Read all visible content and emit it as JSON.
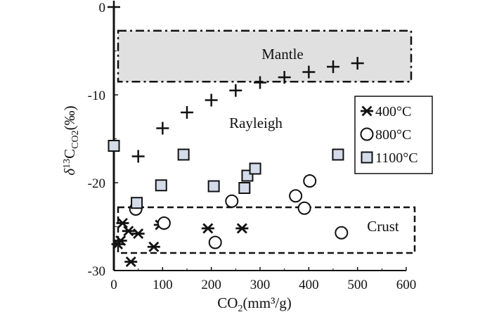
{
  "chart_data": {
    "type": "scatter",
    "xlabel": "CO",
    "xlabel_sub": "2",
    "xlabel_tail": "(mm³/g)",
    "ylabel": "δ",
    "ylabel_sup": "13",
    "ylabel_mid": "C",
    "ylabel_sub": "CO2",
    "ylabel_tail": "(‰)",
    "xlim": [
      0,
      600
    ],
    "ylim": [
      -30,
      0
    ],
    "xticks": [
      "0",
      "100",
      "200",
      "300",
      "400",
      "500",
      "600"
    ],
    "yticks": [
      "0",
      "-10",
      "-20",
      "-30"
    ],
    "xtick_values": [
      0,
      100,
      200,
      300,
      400,
      500,
      600
    ],
    "ytick_values": [
      0,
      -10,
      -20,
      -30
    ],
    "regions": [
      {
        "name": "mantle",
        "label": "Mantle",
        "x": [
          0,
          600
        ],
        "y": [
          -8.5,
          -2.7
        ],
        "fill": "#e0e0e0",
        "style": "dashdot"
      },
      {
        "name": "crust",
        "label": "Crust",
        "x": [
          0,
          600
        ],
        "y": [
          -28,
          -22.8
        ],
        "fill": "none",
        "style": "dashed"
      }
    ],
    "annotation": {
      "text": "Rayleigh",
      "x": 290,
      "y": -13.5
    },
    "series": [
      {
        "name": "Rayleigh",
        "marker": "plus",
        "points": [
          [
            0,
            0
          ],
          [
            50,
            -17
          ],
          [
            100,
            -13.8
          ],
          [
            150,
            -12
          ],
          [
            200,
            -10.6
          ],
          [
            250,
            -9.5
          ],
          [
            300,
            -8.6
          ],
          [
            350,
            -8
          ],
          [
            400,
            -7.4
          ],
          [
            450,
            -6.8
          ],
          [
            500,
            -6.4
          ]
        ]
      },
      {
        "name": "400°C",
        "marker": "asterisk",
        "points": [
          [
            8,
            -27
          ],
          [
            14,
            -26.6
          ],
          [
            18,
            -24.6
          ],
          [
            30,
            -25.5
          ],
          [
            35,
            -29
          ],
          [
            50,
            -25.8
          ],
          [
            82,
            -27.3
          ],
          [
            95,
            -24.8
          ],
          [
            193,
            -25.2
          ],
          [
            263,
            -25.2
          ]
        ]
      },
      {
        "name": "800°C",
        "marker": "circle",
        "points": [
          [
            45,
            -23
          ],
          [
            103,
            -24.6
          ],
          [
            208,
            -26.8
          ],
          [
            242,
            -22.1
          ],
          [
            373,
            -21.5
          ],
          [
            391,
            -22.9
          ],
          [
            402,
            -19.8
          ],
          [
            467,
            -25.7
          ]
        ]
      },
      {
        "name": "1100°C",
        "marker": "square",
        "points": [
          [
            0,
            -15.8
          ],
          [
            47,
            -22.3
          ],
          [
            97,
            -20.3
          ],
          [
            143,
            -16.8
          ],
          [
            205,
            -20.4
          ],
          [
            268,
            -20.6
          ],
          [
            274,
            -19.2
          ],
          [
            290,
            -18.4
          ],
          [
            460,
            -16.8
          ]
        ]
      }
    ],
    "legend": {
      "placement": "right",
      "entries": [
        {
          "marker": "asterisk",
          "label": "400°C"
        },
        {
          "marker": "circle",
          "label": "800°C"
        },
        {
          "marker": "square",
          "label": "1100°C"
        }
      ]
    },
    "colors": {
      "axis": "#111111",
      "square_fill": "#d4dcea",
      "mantle_fill": "#e0e0e0"
    }
  }
}
